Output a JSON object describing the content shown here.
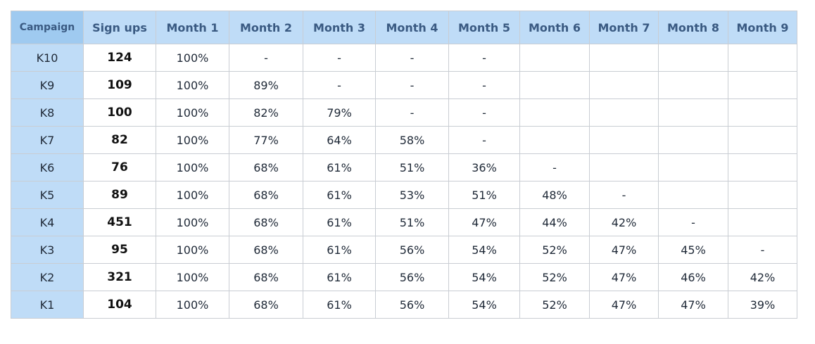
{
  "chart_data": {
    "type": "table",
    "columns": [
      "Campaign",
      "Sign ups",
      "Month 1",
      "Month 2",
      "Month 3",
      "Month 4",
      "Month 5",
      "Month 6",
      "Month 7",
      "Month 8",
      "Month 9"
    ],
    "rows": [
      [
        "K10",
        "124",
        "100%",
        "-",
        "-",
        "-",
        "-",
        "",
        "",
        "",
        ""
      ],
      [
        "K9",
        "109",
        "100%",
        "89%",
        "-",
        "-",
        "-",
        "",
        "",
        "",
        ""
      ],
      [
        "K8",
        "100",
        "100%",
        "82%",
        "79%",
        "-",
        "-",
        "",
        "",
        "",
        ""
      ],
      [
        "K7",
        "82",
        "100%",
        "77%",
        "64%",
        "58%",
        "-",
        "",
        "",
        "",
        ""
      ],
      [
        "K6",
        "76",
        "100%",
        "68%",
        "61%",
        "51%",
        "36%",
        "-",
        "",
        "",
        ""
      ],
      [
        "K5",
        "89",
        "100%",
        "68%",
        "61%",
        "53%",
        "51%",
        "48%",
        "-",
        "",
        ""
      ],
      [
        "K4",
        "451",
        "100%",
        "68%",
        "61%",
        "51%",
        "47%",
        "44%",
        "42%",
        "-",
        ""
      ],
      [
        "K3",
        "95",
        "100%",
        "68%",
        "61%",
        "56%",
        "54%",
        "52%",
        "47%",
        "45%",
        "-"
      ],
      [
        "K2",
        "321",
        "100%",
        "68%",
        "61%",
        "56%",
        "54%",
        "52%",
        "47%",
        "46%",
        "42%"
      ],
      [
        "K1",
        "104",
        "100%",
        "68%",
        "61%",
        "56%",
        "54%",
        "52%",
        "47%",
        "47%",
        "39%"
      ]
    ]
  },
  "colors": {
    "header_bg": "#bfdcf7",
    "campaign_header_bg": "#9fcaf0",
    "header_text": "#3a5a82",
    "campaign_col_bg": "#bfdcf7",
    "border": "#c9cdd3"
  }
}
